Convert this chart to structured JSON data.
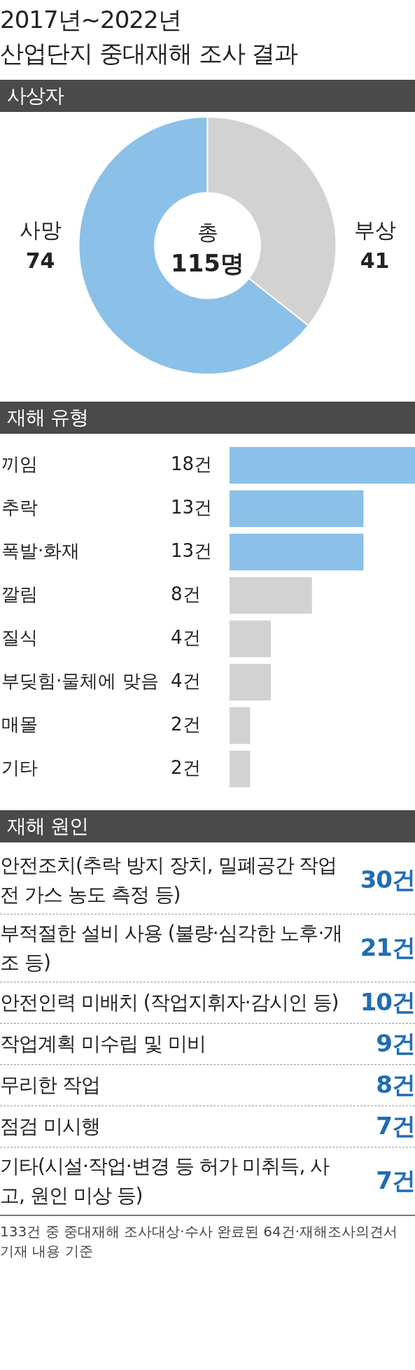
{
  "chart_data": [
    {
      "type": "donut",
      "title": "2017년~2022년\n산업단지 중대재해 조사 결과",
      "subtitle": "사상자",
      "categories": [
        "사망",
        "부상"
      ],
      "values": [
        74,
        41
      ],
      "colors": [
        "#8bc0e9",
        "#d2d2d2"
      ],
      "data_labels": true,
      "annotations": [
        "총\n115명"
      ]
    },
    {
      "type": "bar",
      "orientation": "horizontal",
      "title": "재해 유형",
      "categories": [
        "끼임",
        "추락",
        "폭발·화재",
        "깔림",
        "질식",
        "부딪힘·물체에 맞음",
        "매몰",
        "기타"
      ],
      "values": [
        18,
        13,
        13,
        8,
        4,
        4,
        2,
        2
      ],
      "colors": [
        "#8bc0e9",
        "#8bc0e9",
        "#8bc0e9",
        "#d2d2d2",
        "#d2d2d2",
        "#d2d2d2",
        "#d2d2d2",
        "#d2d2d2"
      ],
      "value_labels": [
        "18건",
        "13건",
        "13건",
        "8건",
        "4건",
        "4건",
        "2건",
        "2건"
      ]
    },
    {
      "type": "other",
      "title": "재해 원인",
      "categories": [
        "안전조치(추락 방지 장치, 밀폐공간 작업 전 가스 농도 측정 등)",
        "부적절한 설비 사용 (불량·심각한 노후·개조 등)",
        "안전인력 미배치 (작업지휘자·감시인 등)",
        "작업계획 미수립 및 미비",
        "무리한 작업",
        "점검 미시행",
        "기타(시설·작업·변경 등 허가 미취득, 사고, 원인 미상 등)"
      ],
      "values": [
        30,
        21,
        10,
        9,
        8,
        7,
        7
      ],
      "value_labels": [
        "30건",
        "21건",
        "10건",
        "9건",
        "8건",
        "7건",
        "7건"
      ],
      "color": "#1f6db5",
      "annotations": [
        "133건 중 중대재해 조사대상·수사 완료된 64건·재해조사의견서 기재 내용 기준"
      ]
    }
  ]
}
